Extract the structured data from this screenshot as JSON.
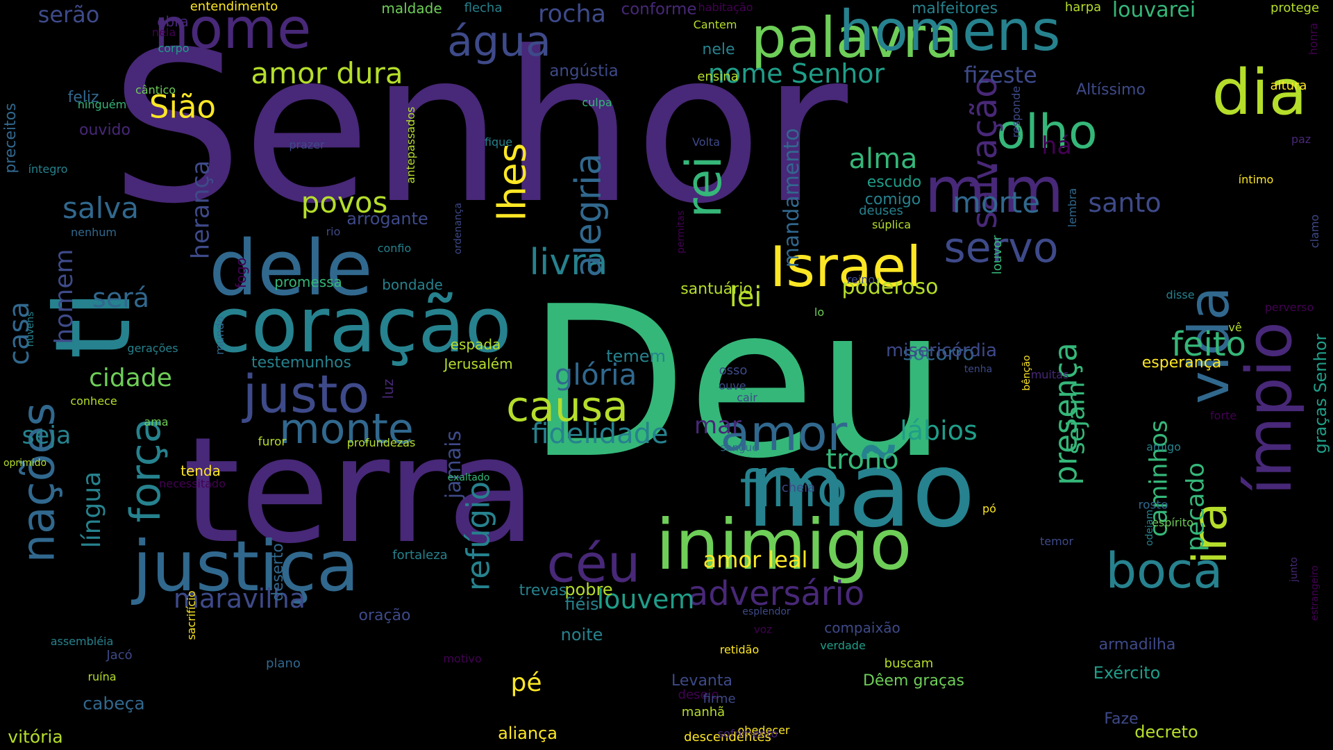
{
  "background": "#000000",
  "palette": [
    "#440154",
    "#482878",
    "#3e4a89",
    "#31688e",
    "#26828e",
    "#1f9e89",
    "#35b779",
    "#6ece58",
    "#b5de2b",
    "#fde725"
  ],
  "words": [
    {
      "text": "Senhor",
      "color": "#482878"
    },
    {
      "text": "Deu",
      "color": "#35b779"
    },
    {
      "text": "terra",
      "color": "#482878"
    },
    {
      "text": "mão",
      "color": "#26828e"
    },
    {
      "text": "ti",
      "color": "#26828e"
    },
    {
      "text": "coração",
      "color": "#26828e"
    },
    {
      "text": "dele",
      "color": "#31688e"
    },
    {
      "text": "justiça",
      "color": "#31688e"
    },
    {
      "text": "inimigo",
      "color": "#6ece58"
    },
    {
      "text": "palavra",
      "color": "#6ece58"
    },
    {
      "text": "nome",
      "color": "#482878"
    },
    {
      "text": "homens",
      "color": "#26828e"
    },
    {
      "text": "mim",
      "color": "#482878"
    },
    {
      "text": "ímpio",
      "color": "#482878"
    },
    {
      "text": "vida",
      "color": "#31688e"
    },
    {
      "text": "dia",
      "color": "#b5de2b"
    },
    {
      "text": "Israel",
      "color": "#fde725"
    },
    {
      "text": "justo",
      "color": "#3e4a89"
    },
    {
      "text": "nações",
      "color": "#31688e"
    },
    {
      "text": "força",
      "color": "#26828e"
    },
    {
      "text": "água",
      "color": "#3e4a89"
    },
    {
      "text": "filho",
      "color": "#26828e"
    },
    {
      "text": "rei",
      "color": "#35b779"
    },
    {
      "text": "olho",
      "color": "#35b779"
    },
    {
      "text": "céu",
      "color": "#482878"
    },
    {
      "text": "boca",
      "color": "#26828e"
    },
    {
      "text": "amor",
      "color": "#31688e"
    },
    {
      "text": "causa",
      "color": "#b5de2b"
    },
    {
      "text": "monte",
      "color": "#31688e"
    },
    {
      "text": "servo",
      "color": "#3e4a89"
    },
    {
      "text": "ira",
      "color": "#b5de2b"
    },
    {
      "text": "lhes",
      "color": "#fde725"
    },
    {
      "text": "livra",
      "color": "#26828e"
    },
    {
      "text": "adversário",
      "color": "#482878"
    },
    {
      "text": "salvação",
      "color": "#482878"
    },
    {
      "text": "alegria",
      "color": "#31688e"
    },
    {
      "text": "glória",
      "color": "#31688e"
    },
    {
      "text": "feito",
      "color": "#35b779"
    },
    {
      "text": "fidelidade",
      "color": "#26828e"
    },
    {
      "text": "presença",
      "color": "#35b779"
    },
    {
      "text": "refúgio",
      "color": "#26828e"
    },
    {
      "text": "trono",
      "color": "#35b779"
    },
    {
      "text": "maravilha",
      "color": "#3e4a89"
    },
    {
      "text": "morte",
      "color": "#31688e"
    },
    {
      "text": "santo",
      "color": "#3e4a89"
    },
    {
      "text": "louvem",
      "color": "#1f9e89"
    },
    {
      "text": "lábios",
      "color": "#1f9e89"
    },
    {
      "text": "Sião",
      "color": "#fde725"
    },
    {
      "text": "amor dura",
      "color": "#b5de2b"
    },
    {
      "text": "nome Senhor",
      "color": "#1f9e89"
    },
    {
      "text": "língua",
      "color": "#26828e"
    },
    {
      "text": "salva",
      "color": "#31688e"
    },
    {
      "text": "povos",
      "color": "#b5de2b"
    },
    {
      "text": "alma",
      "color": "#35b779"
    },
    {
      "text": "lei",
      "color": "#b5de2b"
    },
    {
      "text": "casa",
      "color": "#31688e"
    },
    {
      "text": "homem",
      "color": "#3e4a89"
    },
    {
      "text": "cidade",
      "color": "#6ece58"
    },
    {
      "text": "será",
      "color": "#31688e"
    },
    {
      "text": "herança",
      "color": "#3e4a89"
    },
    {
      "text": "seja",
      "color": "#26828e"
    },
    {
      "text": "sejam",
      "color": "#35b779"
    },
    {
      "text": "caminhos",
      "color": "#35b779"
    },
    {
      "text": "pecado",
      "color": "#35b779"
    },
    {
      "text": "amor leal",
      "color": "#fde725"
    },
    {
      "text": "jamais",
      "color": "#3e4a89"
    },
    {
      "text": "mar",
      "color": "#482878"
    },
    {
      "text": "fizeste",
      "color": "#3e4a89"
    },
    {
      "text": "louvarei",
      "color": "#35b779"
    },
    {
      "text": "rocha",
      "color": "#3e4a89"
    },
    {
      "text": "serão",
      "color": "#3e4a89"
    },
    {
      "text": "mandamento",
      "color": "#31688e"
    },
    {
      "text": "poderoso",
      "color": "#b5de2b"
    },
    {
      "text": "socorro",
      "color": "#31688e"
    },
    {
      "text": "misericórdia",
      "color": "#3e4a89"
    },
    {
      "text": "há",
      "color": "#440154"
    },
    {
      "text": "pé",
      "color": "#fde725"
    },
    {
      "text": "pobre",
      "color": "#b5de2b"
    },
    {
      "text": "noite",
      "color": "#26828e"
    },
    {
      "text": "fiéis",
      "color": "#26828e"
    },
    {
      "text": "cabeça",
      "color": "#31688e"
    },
    {
      "text": "vitória",
      "color": "#b5de2b"
    },
    {
      "text": "aliança",
      "color": "#fde725"
    },
    {
      "text": "decreto",
      "color": "#b5de2b"
    },
    {
      "text": "Exército",
      "color": "#1f9e89"
    },
    {
      "text": "Levanta",
      "color": "#3e4a89"
    },
    {
      "text": "escudo",
      "color": "#1f9e89"
    },
    {
      "text": "comigo",
      "color": "#26828e"
    },
    {
      "text": "temem",
      "color": "#26828e"
    },
    {
      "text": "tenda",
      "color": "#fde725"
    },
    {
      "text": "testemunhos",
      "color": "#26828e"
    },
    {
      "text": "deserto",
      "color": "#31688e"
    },
    {
      "text": "graças Senhor",
      "color": "#1f9e89"
    },
    {
      "text": "oração",
      "color": "#3e4a89"
    },
    {
      "text": "trevas",
      "color": "#26828e"
    },
    {
      "text": "esperança",
      "color": "#fde725"
    },
    {
      "text": "armadilha",
      "color": "#3e4a89"
    },
    {
      "text": "Faze",
      "color": "#3e4a89"
    },
    {
      "text": "luz",
      "color": "#482878"
    },
    {
      "text": "arrogante",
      "color": "#3e4a89"
    },
    {
      "text": "angústia",
      "color": "#3e4a89"
    },
    {
      "text": "bondade",
      "color": "#26828e"
    },
    {
      "text": "Jerusalém",
      "color": "#b5de2b"
    },
    {
      "text": "promessa",
      "color": "#35b779"
    },
    {
      "text": "fogo",
      "color": "#440154"
    },
    {
      "text": "espada",
      "color": "#b5de2b"
    },
    {
      "text": "santuário",
      "color": "#b5de2b"
    },
    {
      "text": "preceitos",
      "color": "#31688e"
    },
    {
      "text": "feliz",
      "color": "#31688e"
    },
    {
      "text": "nele",
      "color": "#26828e"
    },
    {
      "text": "ensina",
      "color": "#b5de2b"
    },
    {
      "text": "Altíssimo",
      "color": "#3e4a89"
    },
    {
      "text": "altura",
      "color": "#fde725"
    },
    {
      "text": "ouvido",
      "color": "#482878"
    },
    {
      "text": "conforme",
      "color": "#482878"
    },
    {
      "text": "maldade",
      "color": "#6ece58"
    },
    {
      "text": "flecha",
      "color": "#26828e"
    },
    {
      "text": "entendimento",
      "color": "#fde725"
    },
    {
      "text": "habitação",
      "color": "#440154"
    },
    {
      "text": "malfeitores",
      "color": "#26828e"
    },
    {
      "text": "harpa",
      "color": "#b5de2b"
    },
    {
      "text": "protege",
      "color": "#b5de2b"
    },
    {
      "text": "obra",
      "color": "#482878"
    },
    {
      "text": "nela",
      "color": "#440154"
    },
    {
      "text": "corpo",
      "color": "#1f9e89"
    },
    {
      "text": "Cantem",
      "color": "#b5de2b"
    },
    {
      "text": "responde",
      "color": "#3e4a89"
    },
    {
      "text": "honra",
      "color": "#440154"
    },
    {
      "text": "cântico",
      "color": "#6ece58"
    },
    {
      "text": "ninguém",
      "color": "#35b779"
    },
    {
      "text": "antepassados",
      "color": "#b5de2b"
    },
    {
      "text": "culpa",
      "color": "#35b779"
    },
    {
      "text": "prazer",
      "color": "#3e4a89"
    },
    {
      "text": "fique",
      "color": "#26828e"
    },
    {
      "text": "Volta",
      "color": "#3e4a89"
    },
    {
      "text": "íntegro",
      "color": "#26828e"
    },
    {
      "text": "paz",
      "color": "#482878"
    },
    {
      "text": "íntimo",
      "color": "#fde725"
    },
    {
      "text": "ordenança",
      "color": "#3e4a89"
    },
    {
      "text": "permitas",
      "color": "#440154"
    },
    {
      "text": "deuses",
      "color": "#26828e"
    },
    {
      "text": "súplica",
      "color": "#b5de2b"
    },
    {
      "text": "lembra",
      "color": "#31688e"
    },
    {
      "text": "clamo",
      "color": "#3e4a89"
    },
    {
      "text": "nenhum",
      "color": "#31688e"
    },
    {
      "text": "rio",
      "color": "#3e4a89"
    },
    {
      "text": "confio",
      "color": "#26828e"
    },
    {
      "text": "louvor",
      "color": "#35b779"
    },
    {
      "text": "reino",
      "color": "#3e4a89"
    },
    {
      "text": "lo",
      "color": "#6ece58"
    },
    {
      "text": "disse",
      "color": "#26828e"
    },
    {
      "text": "perverso",
      "color": "#440154"
    },
    {
      "text": "vê",
      "color": "#b5de2b"
    },
    {
      "text": "nuvens",
      "color": "#26828e"
    },
    {
      "text": "gerações",
      "color": "#26828e"
    },
    {
      "text": "mundo",
      "color": "#31688e"
    },
    {
      "text": "tenha",
      "color": "#3e4a89"
    },
    {
      "text": "bênção",
      "color": "#fde725"
    },
    {
      "text": "muitas",
      "color": "#482878"
    },
    {
      "text": "osso",
      "color": "#3e4a89"
    },
    {
      "text": "ouve",
      "color": "#3e4a89"
    },
    {
      "text": "cair",
      "color": "#3e4a89"
    },
    {
      "text": "conhece",
      "color": "#b5de2b"
    },
    {
      "text": "ama",
      "color": "#6ece58"
    },
    {
      "text": "forte",
      "color": "#440154"
    },
    {
      "text": "furor",
      "color": "#b5de2b"
    },
    {
      "text": "profundezas",
      "color": "#b5de2b"
    },
    {
      "text": "sangue",
      "color": "#31688e"
    },
    {
      "text": "amigo",
      "color": "#26828e"
    },
    {
      "text": "oprimido",
      "color": "#b5de2b"
    },
    {
      "text": "exaltado",
      "color": "#35b779"
    },
    {
      "text": "necessitado",
      "color": "#440154"
    },
    {
      "text": "cheia",
      "color": "#3e4a89"
    },
    {
      "text": "pó",
      "color": "#fde725"
    },
    {
      "text": "rosto",
      "color": "#31688e"
    },
    {
      "text": "espírito",
      "color": "#6ece58"
    },
    {
      "text": "odeiam",
      "color": "#26828e"
    },
    {
      "text": "temor",
      "color": "#3e4a89"
    },
    {
      "text": "junto",
      "color": "#482878"
    },
    {
      "text": "estrangeiro",
      "color": "#440154"
    },
    {
      "text": "fortaleza",
      "color": "#26828e"
    },
    {
      "text": "esplendor",
      "color": "#3e4a89"
    },
    {
      "text": "sacrifício",
      "color": "#fde725"
    },
    {
      "text": "voz",
      "color": "#440154"
    },
    {
      "text": "compaixão",
      "color": "#3e4a89"
    },
    {
      "text": "assembléia",
      "color": "#26828e"
    },
    {
      "text": "Jacó",
      "color": "#3e4a89"
    },
    {
      "text": "ruína",
      "color": "#b5de2b"
    },
    {
      "text": "plano",
      "color": "#31688e"
    },
    {
      "text": "verdade",
      "color": "#1f9e89"
    },
    {
      "text": "motivo",
      "color": "#440154"
    },
    {
      "text": "retidão",
      "color": "#fde725"
    },
    {
      "text": "buscam",
      "color": "#b5de2b"
    },
    {
      "text": "Dêem graças",
      "color": "#6ece58"
    },
    {
      "text": "desejo",
      "color": "#440154"
    },
    {
      "text": "manhã",
      "color": "#b5de2b"
    },
    {
      "text": "firme",
      "color": "#3e4a89"
    },
    {
      "text": "obedecer",
      "color": "#fde725"
    },
    {
      "text": "descendentes",
      "color": "#fde725"
    },
    {
      "text": "sofrimento",
      "color": "#482878"
    }
  ]
}
